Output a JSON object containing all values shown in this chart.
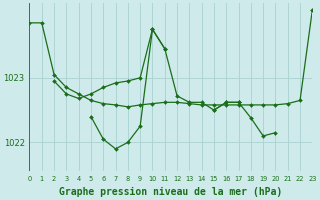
{
  "bg_color": "#ceeaea",
  "grid_color": "#add4d4",
  "line_color": "#1a6e1a",
  "title": "Graphe pression niveau de la mer (hPa)",
  "title_fontsize": 7.0,
  "xlim": [
    0,
    23
  ],
  "ylim": [
    1021.55,
    1024.15
  ],
  "yticks": [
    1022,
    1023
  ],
  "xticks": [
    0,
    1,
    2,
    3,
    4,
    5,
    6,
    7,
    8,
    9,
    10,
    11,
    12,
    13,
    14,
    15,
    16,
    17,
    18,
    19,
    20,
    21,
    22,
    23
  ],
  "segments": [
    {
      "x": [
        0,
        1,
        2,
        3,
        4,
        5,
        6,
        7,
        8,
        9,
        10,
        11,
        12,
        13,
        14,
        15,
        16,
        17,
        18,
        19,
        20,
        21,
        22,
        23
      ],
      "y": [
        1023.85,
        1023.85,
        1023.05,
        1022.85,
        1022.75,
        1022.65,
        1022.6,
        1022.58,
        1022.55,
        1022.58,
        1022.6,
        1022.62,
        1022.62,
        1022.6,
        1022.58,
        1022.58,
        1022.58,
        1022.58,
        1022.58,
        1022.58,
        1022.58,
        1022.6,
        1022.65,
        1024.05
      ]
    },
    {
      "x": [
        2,
        3,
        4,
        5,
        6,
        7,
        8,
        9,
        10,
        11
      ],
      "y": [
        1022.95,
        1022.75,
        1022.68,
        1022.75,
        1022.85,
        1022.92,
        1022.95,
        1023.0,
        1023.75,
        1023.45
      ]
    },
    {
      "x": [
        5,
        6,
        7,
        8,
        9,
        10,
        11,
        12,
        13,
        14,
        15,
        16,
        17
      ],
      "y": [
        1022.4,
        1022.05,
        1021.9,
        1022.0,
        1022.25,
        1023.75,
        1023.45,
        1022.72,
        1022.62,
        1022.62,
        1022.5,
        1022.62,
        1022.62
      ]
    },
    {
      "x": [
        15,
        16,
        17,
        18,
        19,
        20
      ],
      "y": [
        1022.5,
        1022.62,
        1022.62,
        1022.38,
        1022.1,
        1022.15
      ]
    }
  ]
}
